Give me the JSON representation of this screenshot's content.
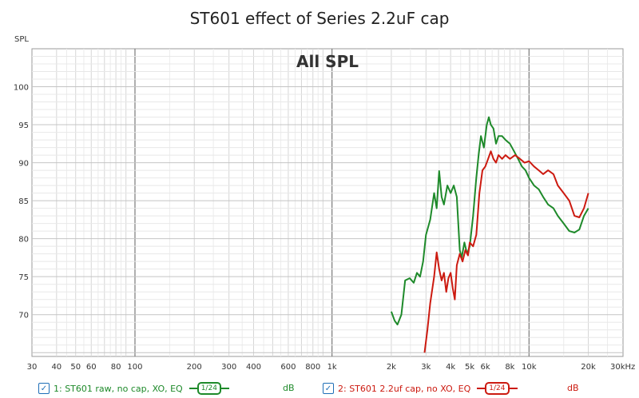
{
  "chart_data": {
    "type": "line",
    "title": "ST601 effect of Series 2.2uF cap",
    "subtitle": "All SPL",
    "ylabel": "SPL",
    "x_scale": "log",
    "xlim": [
      30,
      30000
    ],
    "ylim": [
      64.5,
      105
    ],
    "grid": true,
    "x_ticks": [
      {
        "v": 30,
        "label": "30"
      },
      {
        "v": 40,
        "label": "40"
      },
      {
        "v": 50,
        "label": "50"
      },
      {
        "v": 60,
        "label": "60"
      },
      {
        "v": 80,
        "label": "80"
      },
      {
        "v": 100,
        "label": "100"
      },
      {
        "v": 200,
        "label": "200"
      },
      {
        "v": 300,
        "label": "300"
      },
      {
        "v": 400,
        "label": "400"
      },
      {
        "v": 600,
        "label": "600"
      },
      {
        "v": 800,
        "label": "800"
      },
      {
        "v": 1000,
        "label": "1k"
      },
      {
        "v": 2000,
        "label": "2k"
      },
      {
        "v": 3000,
        "label": "3k"
      },
      {
        "v": 4000,
        "label": "4k"
      },
      {
        "v": 5000,
        "label": "5k"
      },
      {
        "v": 6000,
        "label": "6k"
      },
      {
        "v": 8000,
        "label": "8k"
      },
      {
        "v": 10000,
        "label": "10k"
      },
      {
        "v": 20000,
        "label": "20k"
      },
      {
        "v": 30000,
        "label": "30kHz"
      }
    ],
    "y_ticks": [
      70,
      75,
      80,
      85,
      90,
      95,
      100
    ],
    "series": [
      {
        "name": "1: ST601 raw, no cap, XO, EQ",
        "color": "#1e8a2a",
        "x": [
          2000,
          2080,
          2150,
          2250,
          2350,
          2480,
          2600,
          2700,
          2800,
          2900,
          3000,
          3150,
          3300,
          3400,
          3500,
          3600,
          3700,
          3850,
          4000,
          4150,
          4300,
          4450,
          4550,
          4700,
          4850,
          5000,
          5200,
          5400,
          5550,
          5700,
          5900,
          6100,
          6250,
          6400,
          6600,
          6800,
          7000,
          7300,
          7600,
          8000,
          8400,
          8800,
          9200,
          9600,
          10000,
          10600,
          11200,
          11800,
          12500,
          13300,
          14000,
          15000,
          16000,
          17000,
          18000,
          19000,
          20000
        ],
        "y": [
          70.4,
          69.2,
          68.7,
          70.0,
          74.5,
          74.8,
          74.2,
          75.5,
          75.0,
          77.0,
          80.5,
          82.5,
          86.0,
          84.0,
          88.9,
          85.5,
          84.5,
          87.0,
          86.0,
          87.0,
          85.5,
          78.5,
          77.5,
          79.5,
          78.0,
          79.0,
          83.0,
          88.0,
          91.0,
          93.5,
          92.0,
          95.0,
          96.0,
          95.0,
          94.5,
          92.5,
          93.5,
          93.5,
          93.0,
          92.5,
          91.5,
          90.5,
          89.5,
          89.0,
          88.0,
          87.0,
          86.5,
          85.5,
          84.5,
          84.0,
          83.0,
          82.0,
          81.0,
          80.8,
          81.2,
          83.0,
          84.0
        ]
      },
      {
        "name": "2: ST601 2.2uf cap, no XO, EQ",
        "color": "#cc1a10",
        "x": [
          2950,
          3050,
          3150,
          3300,
          3400,
          3500,
          3600,
          3700,
          3800,
          3900,
          4000,
          4100,
          4200,
          4300,
          4450,
          4600,
          4750,
          4900,
          5000,
          5200,
          5400,
          5600,
          5800,
          6000,
          6200,
          6400,
          6600,
          6800,
          7000,
          7300,
          7600,
          8000,
          8500,
          9000,
          9500,
          10000,
          10600,
          11200,
          11800,
          12500,
          13300,
          14000,
          15000,
          16000,
          17000,
          18000,
          19000,
          20000
        ],
        "y": [
          65.0,
          68.0,
          71.5,
          75.0,
          78.2,
          76.0,
          74.5,
          75.5,
          73.0,
          74.8,
          75.5,
          73.5,
          72.0,
          76.5,
          78.0,
          77.0,
          78.5,
          77.8,
          79.5,
          79.0,
          80.5,
          86.0,
          89.0,
          89.5,
          90.5,
          91.5,
          90.5,
          90.0,
          91.0,
          90.5,
          91.0,
          90.5,
          91.0,
          90.5,
          90.0,
          90.2,
          89.5,
          89.0,
          88.5,
          89.0,
          88.5,
          87.0,
          86.0,
          85.0,
          83.0,
          82.8,
          84.0,
          86.0
        ]
      }
    ]
  },
  "legend": [
    {
      "label": "1: ST601 raw, no cap, XO, EQ",
      "smoothing": "1/24",
      "unit": "dB",
      "checked": "✓",
      "color": "#1e8a2a"
    },
    {
      "label": "2: ST601 2.2uf cap, no XO, EQ",
      "smoothing": "1/24",
      "unit": "dB",
      "checked": "✓",
      "color": "#cc1a10"
    }
  ]
}
